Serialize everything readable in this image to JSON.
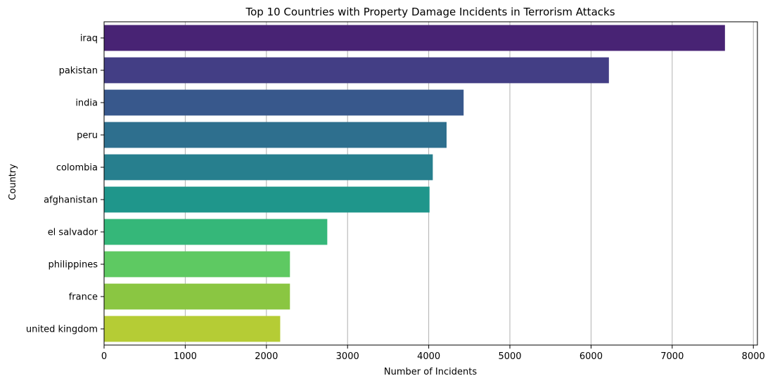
{
  "chart_data": {
    "type": "bar",
    "orientation": "horizontal",
    "title": "Top 10 Countries with Property Damage Incidents in Terrorism Attacks",
    "xlabel": "Number of Incidents",
    "ylabel": "Country",
    "categories": [
      "iraq",
      "pakistan",
      "india",
      "peru",
      "colombia",
      "afghanistan",
      "el salvador",
      "philippines",
      "france",
      "united kingdom"
    ],
    "values": [
      7650,
      6220,
      4430,
      4220,
      4050,
      4010,
      2750,
      2290,
      2290,
      2170
    ],
    "colors": [
      "#482374",
      "#433e85",
      "#38588c",
      "#2e6f8e",
      "#277f8e",
      "#1f968b",
      "#35b779",
      "#5ec962",
      "#8ac642",
      "#b5cc35"
    ],
    "xlim": [
      0,
      8050
    ],
    "xticks": [
      0,
      1000,
      2000,
      3000,
      4000,
      5000,
      6000,
      7000,
      8000
    ],
    "xtick_labels": [
      "0",
      "1000",
      "2000",
      "3000",
      "4000",
      "5000",
      "6000",
      "7000",
      "8000"
    ],
    "grid": "vertical"
  }
}
